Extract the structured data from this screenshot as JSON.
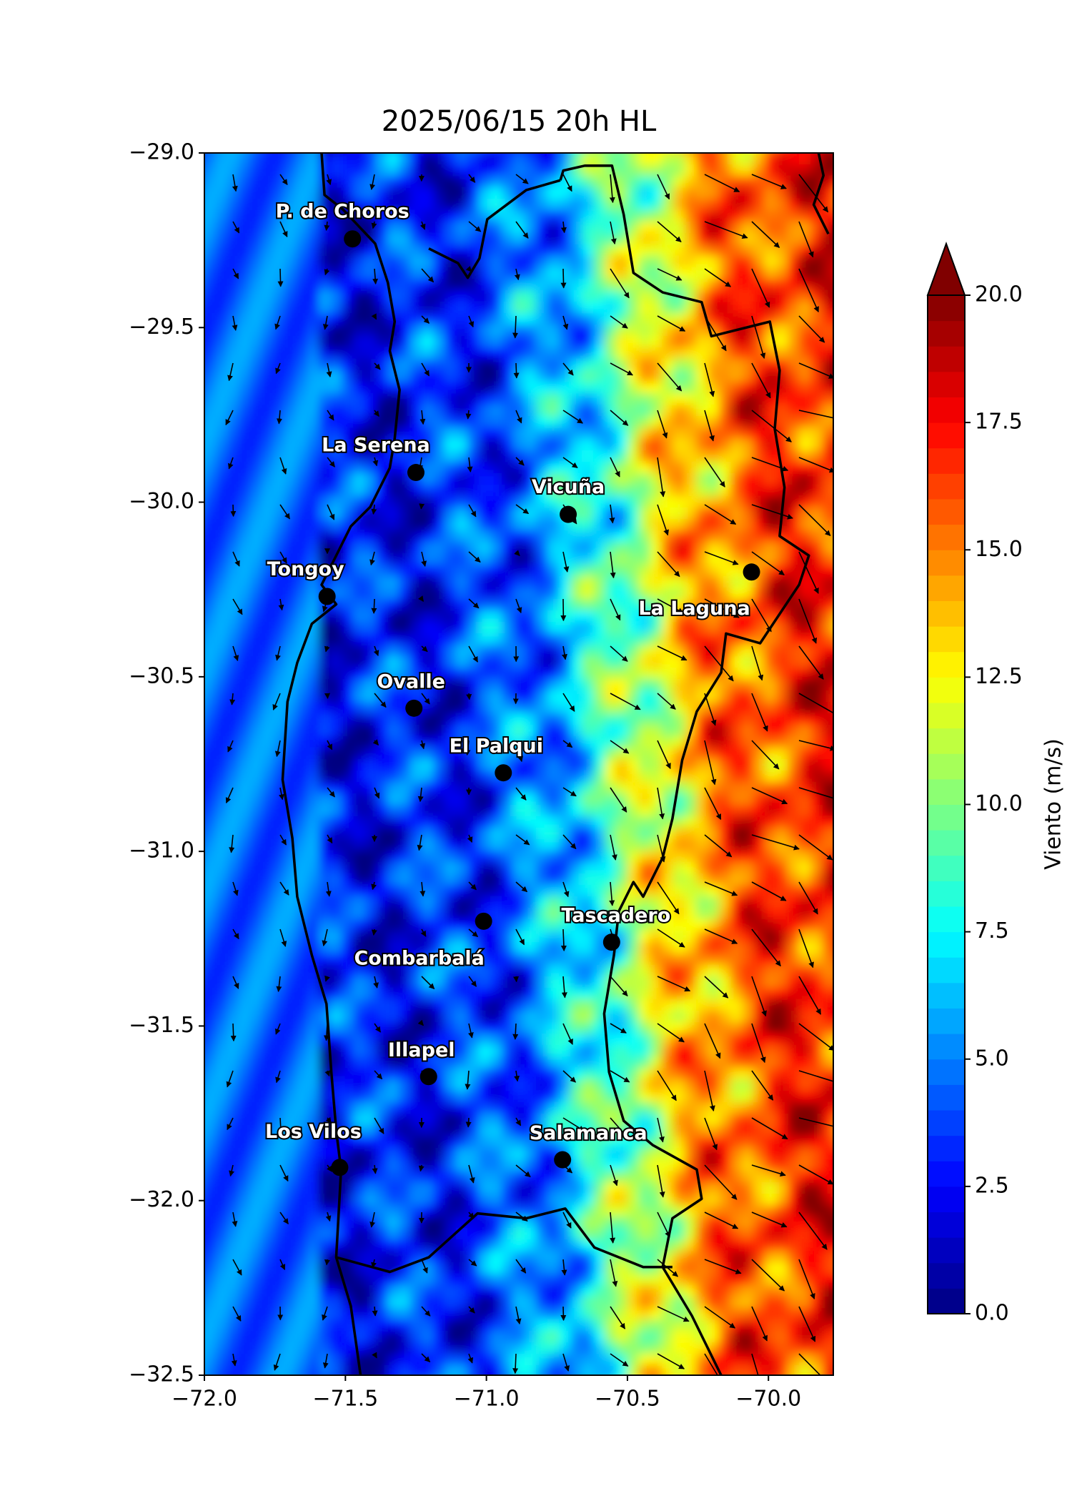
{
  "chart_data": {
    "type": "map",
    "title": "2025/06/15 20h HL",
    "xlim": [
      -72.0,
      -69.77
    ],
    "ylim": [
      -32.5,
      -29.0
    ],
    "xticks": [
      {
        "value": -72.0,
        "label": "−72.0"
      },
      {
        "value": -71.5,
        "label": "−71.5"
      },
      {
        "value": -71.0,
        "label": "−71.0"
      },
      {
        "value": -70.5,
        "label": "−70.5"
      },
      {
        "value": -70.0,
        "label": "−70.0"
      }
    ],
    "yticks": [
      {
        "value": -29.0,
        "label": "−29.0"
      },
      {
        "value": -29.5,
        "label": "−29.5"
      },
      {
        "value": -30.0,
        "label": "−30.0"
      },
      {
        "value": -30.5,
        "label": "−30.5"
      },
      {
        "value": -31.0,
        "label": "−31.0"
      },
      {
        "value": -31.5,
        "label": "−31.5"
      },
      {
        "value": -32.0,
        "label": "−32.0"
      },
      {
        "value": -32.5,
        "label": "−32.5"
      }
    ],
    "colorbar": {
      "label": "Viento (m/s)",
      "colormap": "jet",
      "clim": [
        0.0,
        20.0
      ],
      "extend": "max",
      "ticks": [
        {
          "value": 0,
          "label": "0.0"
        },
        {
          "value": 2.5,
          "label": "2.5"
        },
        {
          "value": 5,
          "label": "5.0"
        },
        {
          "value": 7.5,
          "label": "7.5"
        },
        {
          "value": 10,
          "label": "10.0"
        },
        {
          "value": 12.5,
          "label": "12.5"
        },
        {
          "value": 15,
          "label": "15.0"
        },
        {
          "value": 17.5,
          "label": "17.5"
        },
        {
          "value": 20,
          "label": "20.0"
        }
      ]
    },
    "cities": [
      {
        "name": "P. de Choros",
        "lon": -71.475,
        "lat": -29.246
      },
      {
        "name": "La Serena",
        "lon": -71.25,
        "lat": -29.915
      },
      {
        "name": "Vicuña",
        "lon": -70.71,
        "lat": -30.035
      },
      {
        "name": "Tongoy",
        "lon": -71.565,
        "lat": -30.27
      },
      {
        "name": "La Laguna",
        "lon": -70.06,
        "lat": -30.2
      },
      {
        "name": "Ovalle",
        "lon": -71.257,
        "lat": -30.59
      },
      {
        "name": "El Palqui",
        "lon": -70.94,
        "lat": -30.775
      },
      {
        "name": "Combarbalá",
        "lon": -71.01,
        "lat": -31.2
      },
      {
        "name": "Tascadero",
        "lon": -70.556,
        "lat": -31.26
      },
      {
        "name": "Illapel",
        "lon": -71.205,
        "lat": -31.645
      },
      {
        "name": "Salamanca",
        "lon": -70.73,
        "lat": -31.883
      },
      {
        "name": "Los Vilos",
        "lon": -71.52,
        "lat": -31.905
      }
    ]
  }
}
